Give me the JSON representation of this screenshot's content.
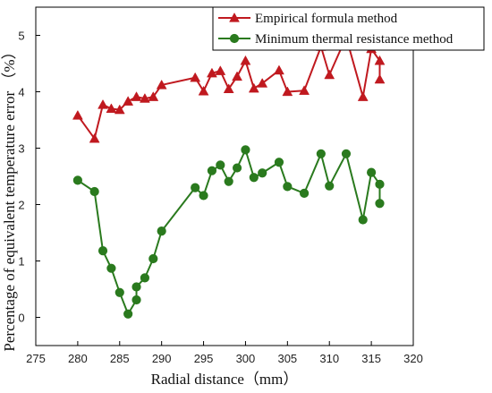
{
  "chart_data": {
    "type": "line",
    "xlabel": "Radial distance（mm）",
    "ylabel": "Percentage of equivalent temperature error （%）",
    "xlim": [
      275,
      320
    ],
    "ylim": [
      -0.5,
      5.5
    ],
    "x_ticks": [
      "275",
      "280",
      "285",
      "290",
      "295",
      "300",
      "305",
      "310",
      "315",
      "320"
    ],
    "y_ticks": [
      "0",
      "1",
      "2",
      "3",
      "4",
      "5"
    ],
    "legend_position": "top-right",
    "series": [
      {
        "name": "Empirical formula method",
        "color": "#c0191f",
        "marker": "triangle",
        "points": [
          [
            280,
            3.58
          ],
          [
            282,
            3.17
          ],
          [
            283,
            3.77
          ],
          [
            284,
            3.7
          ],
          [
            285,
            3.68
          ],
          [
            286,
            3.83
          ],
          [
            287,
            3.91
          ],
          [
            288,
            3.88
          ],
          [
            289,
            3.91
          ],
          [
            290,
            4.12
          ],
          [
            294,
            4.25
          ],
          [
            295,
            4.01
          ],
          [
            296,
            4.33
          ],
          [
            297,
            4.37
          ],
          [
            298,
            4.05
          ],
          [
            299,
            4.27
          ],
          [
            300,
            4.55
          ],
          [
            301,
            4.06
          ],
          [
            302,
            4.15
          ],
          [
            304,
            4.38
          ],
          [
            305,
            4.0
          ],
          [
            307,
            4.02
          ],
          [
            309,
            4.8
          ],
          [
            310,
            4.3
          ],
          [
            312,
            4.97
          ],
          [
            314,
            3.91
          ],
          [
            315,
            4.76
          ],
          [
            316,
            4.55
          ],
          [
            316,
            4.22
          ]
        ]
      },
      {
        "name": "Minimum thermal resistance method",
        "color": "#2a7a1e",
        "marker": "circle",
        "points": [
          [
            280,
            2.43
          ],
          [
            282,
            2.23
          ],
          [
            283,
            1.18
          ],
          [
            284,
            0.87
          ],
          [
            285,
            0.44
          ],
          [
            286,
            0.06
          ],
          [
            287,
            0.31
          ],
          [
            287,
            0.54
          ],
          [
            288,
            0.7
          ],
          [
            289,
            1.04
          ],
          [
            290,
            1.53
          ],
          [
            294,
            2.3
          ],
          [
            295,
            2.16
          ],
          [
            296,
            2.6
          ],
          [
            297,
            2.7
          ],
          [
            298,
            2.41
          ],
          [
            299,
            2.65
          ],
          [
            300,
            2.97
          ],
          [
            301,
            2.48
          ],
          [
            302,
            2.56
          ],
          [
            304,
            2.75
          ],
          [
            305,
            2.32
          ],
          [
            307,
            2.2
          ],
          [
            309,
            2.9
          ],
          [
            310,
            2.33
          ],
          [
            312,
            2.9
          ],
          [
            314,
            1.73
          ],
          [
            315,
            2.57
          ],
          [
            316,
            2.36
          ],
          [
            316,
            2.02
          ]
        ]
      }
    ]
  }
}
